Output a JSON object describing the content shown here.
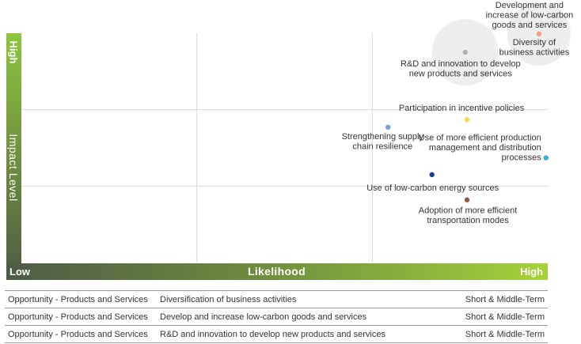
{
  "chart_data": {
    "type": "scatter",
    "xlabel": "Likelihood",
    "ylabel": "Impact Level",
    "x_low_label": "Low",
    "x_high_label": "High",
    "y_high_label": "High",
    "xlim": [
      0,
      3
    ],
    "ylim": [
      0,
      3
    ],
    "grid": true,
    "points": [
      {
        "label": "Development and increase of low-carbon goods and services",
        "x": 2.95,
        "y": 2.99,
        "color": "#f4a07a",
        "bubble": true
      },
      {
        "label": "Diversity of business activities",
        "x": 2.95,
        "y": 2.99,
        "color": "#f4a07a",
        "bubble": false
      },
      {
        "label": "R&D and innovation to develop new products and services",
        "x": 2.53,
        "y": 2.75,
        "color": "#b0b0b0",
        "bubble": true
      },
      {
        "label": "Participation in incentive policies",
        "x": 2.54,
        "y": 1.87,
        "color": "#f5d84e",
        "bubble": false
      },
      {
        "label": "Strengthening supply chain resilience",
        "x": 2.09,
        "y": 1.77,
        "color": "#7a9fd8",
        "bubble": false
      },
      {
        "label": "Use of more efficient production management and distribution processes",
        "x": 2.99,
        "y": 1.37,
        "color": "#3aaee8",
        "bubble": false
      },
      {
        "label": "Use of low-carbon energy sources",
        "x": 2.34,
        "y": 1.15,
        "color": "#1f3f8c",
        "bubble": false
      },
      {
        "label": "Adoption of more efficient transportation modes",
        "x": 2.54,
        "y": 0.82,
        "color": "#8a5a44",
        "bubble": false
      }
    ]
  },
  "table": {
    "rows": [
      {
        "type": "Opportunity - Products and Services",
        "description": "Diversification of business activities",
        "term": "Short & Middle-Term"
      },
      {
        "type": "Opportunity - Products and Services",
        "description": "Develop and increase low-carbon goods and services",
        "term": "Short & Middle-Term"
      },
      {
        "type": "Opportunity - Products and Services",
        "description": "R&D and innovation to develop new products and services",
        "term": "Short & Middle-Term"
      }
    ]
  }
}
